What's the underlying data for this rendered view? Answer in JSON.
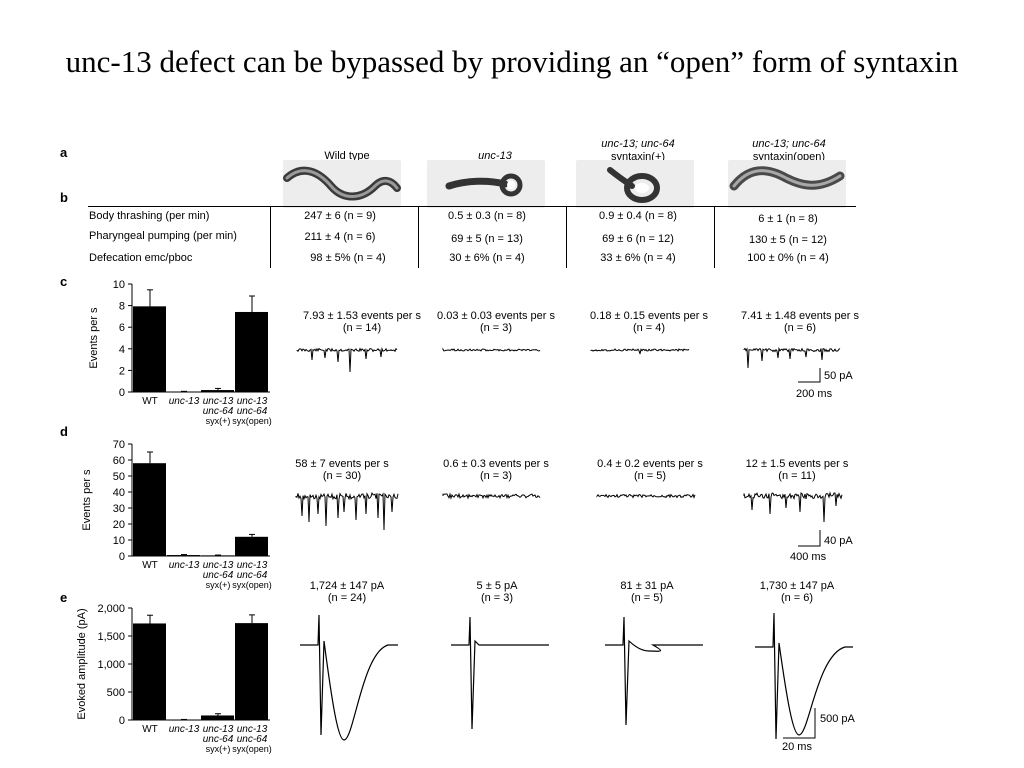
{
  "title": "unc-13 defect can be bypassed by providing an “open” form of syntaxin",
  "panel_labels": {
    "a": "a",
    "b": "b",
    "c": "c",
    "d": "d",
    "e": "e"
  },
  "columns": [
    {
      "line1": "Wild type",
      "line2": ""
    },
    {
      "line1": "unc-13",
      "line2": ""
    },
    {
      "line1": "unc-13; unc-64",
      "line2": "syntaxin(+)"
    },
    {
      "line1": "unc-13; unc-64",
      "line2": "syntaxin(open)"
    }
  ],
  "table": {
    "rows": [
      {
        "label": "Body thrashing (per min)",
        "values": [
          "247 ± 6 (n = 9)",
          "0.5 ± 0.3 (n = 8)",
          "0.9 ± 0.4 (n = 8)",
          "6 ± 1 (n = 8)"
        ]
      },
      {
        "label": "Pharyngeal pumping (per min)",
        "values": [
          "211 ± 4 (n = 6)",
          "69 ± 5 (n = 13)",
          "69 ± 6 (n = 12)",
          "130 ± 5 (n = 12)"
        ]
      },
      {
        "label": "Defecation emc/pboc",
        "values": [
          "98 ± 5% (n = 4)",
          "30 ± 6% (n = 4)",
          "33 ± 6% (n = 4)",
          "100 ± 0% (n = 4)"
        ]
      }
    ]
  },
  "bar_categories": [
    {
      "l1": "WT",
      "l2": "",
      "l3": ""
    },
    {
      "l1": "unc-13",
      "l2": "",
      "l3": ""
    },
    {
      "l1": "unc-13",
      "l2": "unc-64",
      "l3": "syx(+)"
    },
    {
      "l1": "unc-13",
      "l2": "unc-64",
      "l3": "syx(open)"
    }
  ],
  "trace_labels": {
    "c": [
      {
        "value": "7.93 ± 1.53 events per s",
        "n": "(n = 14)"
      },
      {
        "value": "0.03 ± 0.03 events per s",
        "n": "(n = 3)"
      },
      {
        "value": "0.18 ± 0.15 events per s",
        "n": "(n = 4)"
      },
      {
        "value": "7.41 ± 1.48 events per s",
        "n": "(n = 6)"
      }
    ],
    "d": [
      {
        "value": "58 ± 7 events per s",
        "n": "(n = 30)"
      },
      {
        "value": "0.6 ± 0.3 events per s",
        "n": "(n = 3)"
      },
      {
        "value": "0.4 ± 0.2 events per s",
        "n": "(n = 5)"
      },
      {
        "value": "12 ± 1.5 events per s",
        "n": "(n = 11)"
      }
    ],
    "e": [
      {
        "value": "1,724 ± 147 pA",
        "n": "(n = 24)"
      },
      {
        "value": "5 ± 5 pA",
        "n": "(n = 3)"
      },
      {
        "value": "81 ± 31 pA",
        "n": "(n = 5)"
      },
      {
        "value": "1,730 ± 147 pA",
        "n": "(n = 6)"
      }
    ]
  },
  "scale_bars": {
    "c": {
      "amp": "50 pA",
      "time": "200 ms"
    },
    "d": {
      "amp": "40 pA",
      "time": "400 ms"
    },
    "e": {
      "amp": "500 pA",
      "time": "20 ms"
    }
  },
  "chart_data": [
    {
      "panel": "c",
      "type": "bar",
      "ylabel": "Events per s",
      "ylim": [
        0,
        10
      ],
      "yticks": [
        "0",
        "2",
        "4",
        "6",
        "8",
        "10"
      ],
      "ytick_values": [
        0,
        2,
        4,
        6,
        8,
        10
      ],
      "values": [
        7.93,
        0.03,
        0.18,
        7.41
      ],
      "errors": [
        1.53,
        0.03,
        0.15,
        1.48
      ]
    },
    {
      "panel": "d",
      "type": "bar",
      "ylabel": "Events per s",
      "ylim": [
        0,
        70
      ],
      "yticks": [
        "0",
        "10",
        "20",
        "30",
        "40",
        "50",
        "60",
        "70"
      ],
      "ytick_values": [
        0,
        10,
        20,
        30,
        40,
        50,
        60,
        70
      ],
      "values": [
        58,
        0.6,
        0.4,
        12
      ],
      "errors": [
        7,
        0.3,
        0.2,
        1.5
      ]
    },
    {
      "panel": "e",
      "type": "bar",
      "ylabel": "Evoked amplitude (pA)",
      "ylim": [
        0,
        2000
      ],
      "yticks": [
        "0",
        "500",
        "1,000",
        "1,500",
        "2,000"
      ],
      "ytick_values": [
        0,
        500,
        1000,
        1500,
        2000
      ],
      "values": [
        1724,
        5,
        81,
        1730
      ],
      "errors": [
        147,
        5,
        31,
        147
      ]
    }
  ]
}
